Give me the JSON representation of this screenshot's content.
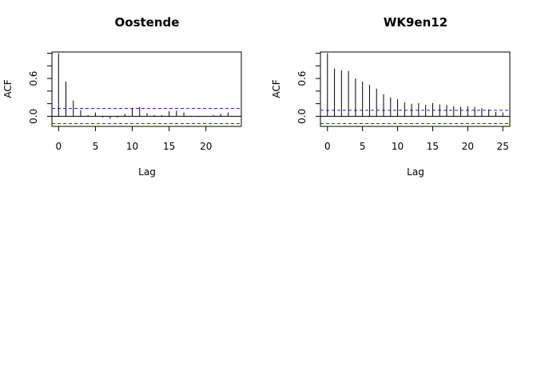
{
  "chart_data": [
    {
      "type": "bar",
      "title": "Oostende",
      "xlabel": "Lag",
      "ylabel": "ACF",
      "x": [
        0,
        1,
        2,
        3,
        4,
        5,
        6,
        7,
        8,
        9,
        10,
        11,
        12,
        13,
        14,
        15,
        16,
        17,
        18,
        19,
        20,
        21,
        22,
        23
      ],
      "values": [
        1.0,
        0.55,
        0.25,
        0.1,
        0.02,
        0.06,
        -0.02,
        -0.04,
        -0.02,
        0.04,
        0.13,
        0.15,
        0.05,
        0.02,
        0.02,
        0.08,
        0.09,
        0.06,
        -0.01,
        -0.01,
        0.0,
        0.02,
        0.04,
        0.06
      ],
      "confidence_band": [
        -0.115,
        0.125
      ],
      "xlim": [
        -0.9,
        24.8
      ],
      "ylim": [
        -0.16,
        1.02
      ],
      "xticks": [
        0,
        5,
        10,
        15,
        20
      ],
      "yticks": [
        0.0,
        0.6
      ],
      "yticks_minor": [
        0.2,
        0.4,
        0.8,
        1.0
      ],
      "colors": {
        "bars": "#000000",
        "band": "#2828d0",
        "zero": "#000000"
      }
    },
    {
      "type": "bar",
      "title": "WK9en12",
      "xlabel": "Lag",
      "ylabel": "ACF",
      "x": [
        0,
        1,
        2,
        3,
        4,
        5,
        6,
        7,
        8,
        9,
        10,
        11,
        12,
        13,
        14,
        15,
        16,
        17,
        18,
        19,
        20,
        21,
        22,
        23,
        24,
        25
      ],
      "values": [
        1.0,
        0.76,
        0.73,
        0.72,
        0.6,
        0.55,
        0.5,
        0.44,
        0.35,
        0.3,
        0.27,
        0.22,
        0.2,
        0.21,
        0.18,
        0.21,
        0.19,
        0.18,
        0.16,
        0.15,
        0.16,
        0.15,
        0.13,
        0.11,
        0.07,
        0.06
      ],
      "confidence_band": [
        -0.115,
        0.095
      ],
      "xlim": [
        -1.0,
        26.0
      ],
      "ylim": [
        -0.16,
        1.02
      ],
      "xticks": [
        0,
        5,
        10,
        15,
        20,
        25
      ],
      "yticks": [
        0.0,
        0.6
      ],
      "yticks_minor": [
        0.2,
        0.4,
        0.8,
        1.0
      ],
      "colors": {
        "bars": "#000000",
        "band": "#2828d0",
        "zero": "#000000"
      }
    }
  ]
}
